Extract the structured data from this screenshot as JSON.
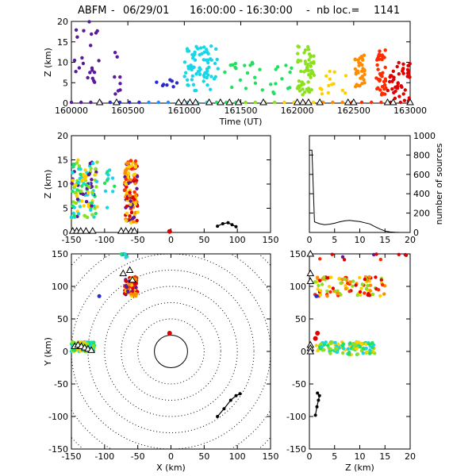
{
  "title": {
    "network": "ABFM",
    "date": "06/29/01",
    "time_range": "16:00:00 - 16:30:00",
    "count_label": "nb loc.=",
    "count": "1141"
  },
  "chart_data": [
    {
      "type": "scatter",
      "panel": "time-height",
      "xlabel": "Time (UT)",
      "ylabel": "Z (km)",
      "xlim": [
        160000,
        163000
      ],
      "ylim": [
        0,
        20
      ],
      "xticks": [
        "160000",
        "160500",
        "161000",
        "161500",
        "162000",
        "162500",
        "163000"
      ],
      "yticks": [
        "0",
        "5",
        "10",
        "15",
        "20"
      ],
      "colors": [
        "#5a1a9a",
        "#2a2ad0",
        "#1e90ff",
        "#18d6e6",
        "#20e060",
        "#8ce01e",
        "#ffd000",
        "#ff8c00",
        "#ff2a00",
        "#e00000"
      ],
      "clusters": [
        {
          "x": [
            160000,
            160250
          ],
          "y": [
            2,
            20
          ],
          "n": 22,
          "c": 0
        },
        {
          "x": [
            160320,
            160480
          ],
          "y": [
            2,
            13
          ],
          "n": 8,
          "c": 0
        },
        {
          "x": [
            160750,
            160980
          ],
          "y": [
            4,
            6
          ],
          "n": 8,
          "c": 1
        },
        {
          "x": [
            161000,
            161300
          ],
          "y": [
            3,
            14
          ],
          "n": 70,
          "c": 3
        },
        {
          "x": [
            161350,
            161700
          ],
          "y": [
            3,
            10
          ],
          "n": 18,
          "c": 4
        },
        {
          "x": [
            161750,
            161990
          ],
          "y": [
            2,
            10
          ],
          "n": 12,
          "c": 4
        },
        {
          "x": [
            162000,
            162150
          ],
          "y": [
            2,
            14
          ],
          "n": 55,
          "c": 5
        },
        {
          "x": [
            162200,
            162450
          ],
          "y": [
            2,
            8
          ],
          "n": 14,
          "c": 6
        },
        {
          "x": [
            162500,
            162600
          ],
          "y": [
            4,
            12
          ],
          "n": 35,
          "c": 7
        },
        {
          "x": [
            162700,
            162790
          ],
          "y": [
            2,
            13
          ],
          "n": 40,
          "c": 8
        },
        {
          "x": [
            162800,
            163000
          ],
          "y": [
            0,
            10
          ],
          "n": 45,
          "c": 9
        }
      ],
      "ground_colored": {
        "x": [
          160000,
          163000
        ],
        "n": 36
      },
      "ground_triangles": [
        160250,
        160400,
        160950,
        161000,
        161050,
        161100,
        161220,
        161320,
        161400,
        161480,
        161700,
        162000,
        162050,
        162100,
        162200,
        162450,
        162500,
        162800,
        162850,
        163000
      ]
    },
    {
      "type": "scatter",
      "panel": "x-height",
      "xlabel": "",
      "ylabel": "Z (km)",
      "xlim": [
        -150,
        150
      ],
      "ylim": [
        0,
        20
      ],
      "xticks": [
        "-150",
        "-100",
        "-50",
        "0",
        "50",
        "100",
        "150"
      ],
      "yticks": [
        "0",
        "5",
        "10",
        "15",
        "20"
      ],
      "clusters": [
        {
          "x": [
            -150,
            -110
          ],
          "y": [
            3,
            15
          ],
          "n": 120,
          "cs": [
            3,
            4,
            5,
            6,
            0
          ]
        },
        {
          "x": [
            -70,
            -50
          ],
          "y": [
            2,
            15
          ],
          "n": 130,
          "cs": [
            7,
            8,
            9,
            6,
            0
          ]
        },
        {
          "x": [
            -100,
            -85
          ],
          "y": [
            5,
            13
          ],
          "n": 12,
          "cs": [
            3,
            4
          ]
        }
      ],
      "black_path": [
        [
          70,
          1.3
        ],
        [
          78,
          1.8
        ],
        [
          86,
          2.0
        ],
        [
          92,
          1.6
        ],
        [
          98,
          1.2
        ]
      ],
      "red_point": [
        -2,
        0.2
      ],
      "ground_triangles": [
        -148,
        -142,
        -136,
        -128,
        -118,
        -75,
        -68,
        -60,
        -55
      ]
    },
    {
      "type": "line",
      "panel": "height-histogram",
      "xlabel": "",
      "ylabel": "number of sources",
      "xlim": [
        0,
        20
      ],
      "ylim": [
        0,
        1000
      ],
      "xticks": [
        "0",
        "5",
        "10",
        "15",
        "20"
      ],
      "yticks": [
        "0",
        "200",
        "400",
        "600",
        "800",
        "1000"
      ],
      "x": [
        0,
        0.5,
        1,
        2,
        3,
        4,
        5,
        6,
        7,
        8,
        9,
        10,
        11,
        12,
        13,
        14,
        15,
        16,
        17,
        18,
        19,
        20
      ],
      "values": [
        850,
        850,
        110,
        90,
        80,
        85,
        95,
        110,
        120,
        125,
        118,
        112,
        100,
        88,
        60,
        35,
        15,
        5,
        2,
        0,
        0,
        0
      ]
    },
    {
      "type": "scatter",
      "panel": "plan-view",
      "xlabel": "X (km)",
      "ylabel": "Y (km)",
      "xlim": [
        -150,
        150
      ],
      "ylim": [
        -150,
        150
      ],
      "xticks": [
        "-150",
        "-100",
        "-50",
        "0",
        "50",
        "100",
        "150"
      ],
      "yticks": [
        "-150",
        "-100",
        "-50",
        "0",
        "50",
        "100",
        "150"
      ],
      "range_rings_km": [
        25,
        50,
        75,
        100,
        125,
        150,
        175,
        200
      ],
      "clusters": [
        {
          "x": [
            -150,
            -115
          ],
          "y": [
            0,
            15
          ],
          "n": 110,
          "cs": [
            3,
            4,
            5,
            6
          ]
        },
        {
          "x": [
            -70,
            -50
          ],
          "y": [
            85,
            115
          ],
          "n": 90,
          "cs": [
            7,
            8,
            9,
            6,
            0
          ]
        },
        {
          "x": [
            -75,
            -65
          ],
          "y": [
            140,
            150
          ],
          "n": 8,
          "cs": [
            0,
            3,
            4
          ]
        }
      ],
      "red_point": [
        -2,
        28
      ],
      "blue_point": [
        -108,
        85
      ],
      "black_path": [
        [
          70,
          -100
        ],
        [
          80,
          -88
        ],
        [
          90,
          -75
        ],
        [
          98,
          -68
        ],
        [
          104,
          -65
        ]
      ],
      "triangles": [
        [
          -145,
          8
        ],
        [
          -140,
          10
        ],
        [
          -135,
          8
        ],
        [
          -130,
          6
        ],
        [
          -125,
          4
        ],
        [
          -120,
          2
        ],
        [
          -72,
          120
        ],
        [
          -62,
          125
        ],
        [
          -58,
          110
        ]
      ]
    },
    {
      "type": "scatter",
      "panel": "height-y",
      "xlabel": "Z (km)",
      "ylabel": "",
      "xlim": [
        0,
        20
      ],
      "ylim": [
        -150,
        150
      ],
      "xticks": [
        "0",
        "5",
        "10",
        "15",
        "20"
      ],
      "yticks": [
        "-150",
        "-100",
        "-50",
        "0",
        "50",
        "100",
        "150"
      ],
      "clusters": [
        {
          "x": [
            1,
            15
          ],
          "y": [
            85,
            115
          ],
          "n": 100,
          "cs": [
            7,
            8,
            9,
            6,
            5
          ]
        },
        {
          "x": [
            1,
            13
          ],
          "y": [
            -5,
            15
          ],
          "n": 110,
          "cs": [
            3,
            4,
            5,
            6
          ]
        },
        {
          "x": [
            2,
            20
          ],
          "y": [
            140,
            150
          ],
          "n": 10,
          "cs": [
            0,
            8,
            9
          ]
        }
      ],
      "red_points": [
        [
          1.6,
          28
        ],
        [
          1.2,
          20
        ]
      ],
      "blue_point": [
        1.4,
        85
      ],
      "black_path": [
        [
          1.2,
          -98
        ],
        [
          1.5,
          -85
        ],
        [
          1.8,
          -75
        ],
        [
          2.0,
          -68
        ],
        [
          1.6,
          -64
        ]
      ],
      "triangles": [
        [
          0.2,
          150
        ],
        [
          0.2,
          120
        ],
        [
          0.2,
          108
        ],
        [
          0.2,
          10
        ],
        [
          0.2,
          5
        ],
        [
          0.2,
          0
        ]
      ]
    }
  ]
}
